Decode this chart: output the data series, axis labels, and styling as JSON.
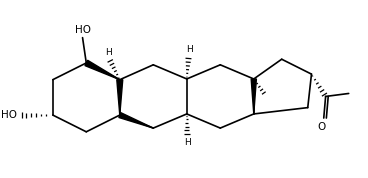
{
  "bg_color": "#ffffff",
  "line_color": "#000000",
  "line_width": 1.2,
  "figsize": [
    3.68,
    1.78
  ],
  "dpi": 100,
  "xlim": [
    0.0,
    9.5
  ],
  "ylim": [
    0.3,
    4.2
  ]
}
